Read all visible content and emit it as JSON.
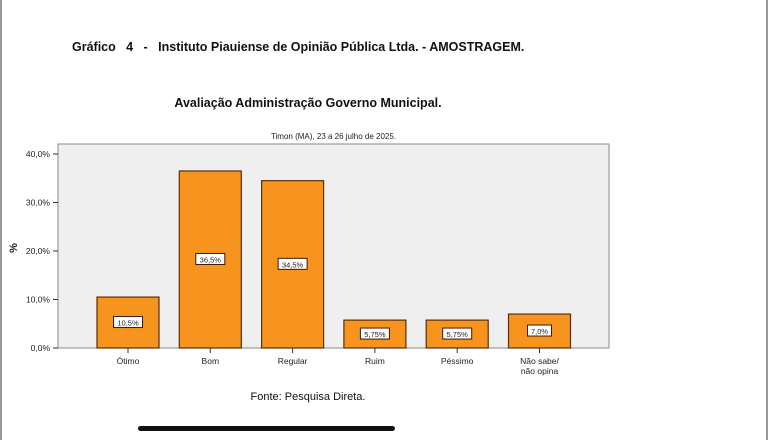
{
  "header": "Gráfico   4   -   Instituto Piauiense de Opinião Pública Ltda. - AMOSTRAGEM.",
  "source": "Fonte: Pesquisa Direta.",
  "chart_data": {
    "type": "bar",
    "title": "Avaliação Administração Governo Municipal.",
    "subtitle": "Timon (MA), 23 a 26 julho de 2025.",
    "ylabel": "%",
    "xlabel": "",
    "ylim": [
      0,
      40
    ],
    "yticks": [
      "0,0%",
      "10,0%",
      "20,0%",
      "30,0%",
      "40,0%"
    ],
    "categories": [
      "Ótimo",
      "Bom",
      "Regular",
      "Ruim",
      "Péssimo",
      "Não sabe/ não opina"
    ],
    "values": [
      10.5,
      36.5,
      34.5,
      5.75,
      5.75,
      7.0
    ],
    "data_labels": [
      "10,5%",
      "36,5%",
      "34,5%",
      "5,75%",
      "5,75%",
      "7,0%"
    ],
    "grid": false,
    "bar_color": "#f7941d",
    "plot_bg": "#efefef"
  }
}
